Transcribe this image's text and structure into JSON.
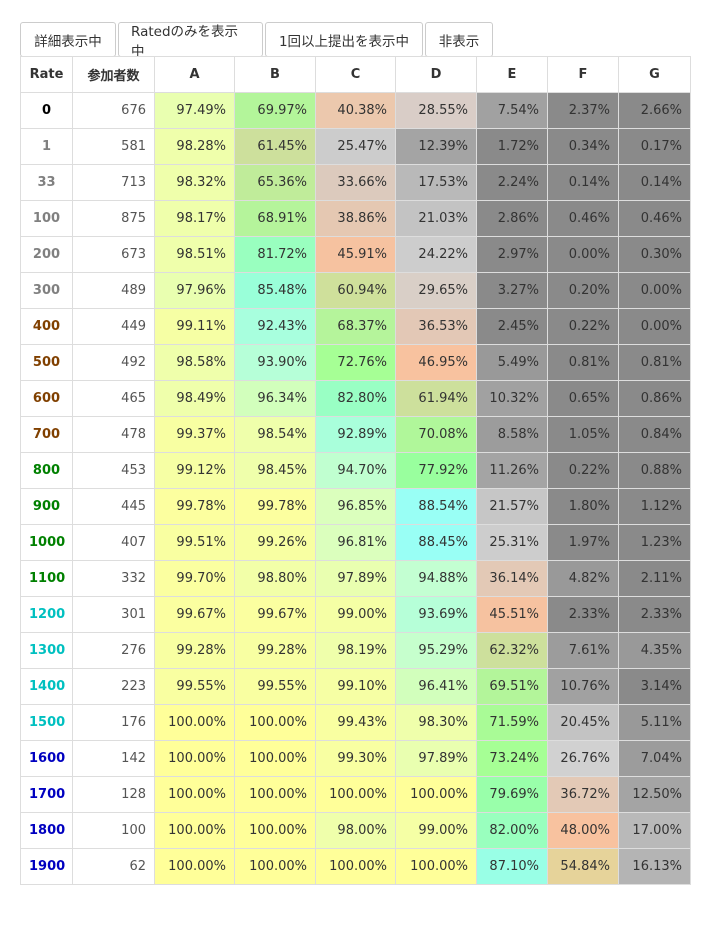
{
  "toolbar": {
    "buttons": [
      "詳細表示中",
      "Ratedのみを表示中",
      "1回以上提出を表示中",
      "非表示"
    ]
  },
  "table": {
    "headers": [
      "Rate",
      "参加者数",
      "A",
      "B",
      "C",
      "D",
      "E",
      "F",
      "G"
    ],
    "rows": [
      {
        "rate": "0",
        "rate_color": "#000000",
        "count": "676",
        "values": [
          "97.49%",
          "69.97%",
          "40.38%",
          "28.55%",
          "7.54%",
          "2.37%",
          "2.66%"
        ],
        "bg": [
          "#e9ffb0",
          "#b3f59a",
          "#ecc8ad",
          "#d9cdc7",
          "#a1a1a1",
          "#8a8a8a",
          "#8a8a8a"
        ]
      },
      {
        "rate": "1",
        "rate_color": "#808080",
        "count": "581",
        "values": [
          "98.28%",
          "61.45%",
          "25.47%",
          "12.39%",
          "1.72%",
          "0.34%",
          "0.17%"
        ],
        "bg": [
          "#efffab",
          "#cde09c",
          "#cccccc",
          "#a4a4a4",
          "#8a8a8a",
          "#8a8a8a",
          "#8a8a8a"
        ]
      },
      {
        "rate": "33",
        "rate_color": "#808080",
        "count": "713",
        "values": [
          "98.32%",
          "65.36%",
          "33.66%",
          "17.53%",
          "2.24%",
          "0.14%",
          "0.14%"
        ],
        "bg": [
          "#efffab",
          "#c0ec9a",
          "#dccabd",
          "#b9b9b9",
          "#8a8a8a",
          "#8a8a8a",
          "#8a8a8a"
        ]
      },
      {
        "rate": "100",
        "rate_color": "#808080",
        "count": "875",
        "values": [
          "98.17%",
          "68.91%",
          "38.86%",
          "21.03%",
          "2.86%",
          "0.46%",
          "0.46%"
        ],
        "bg": [
          "#efffab",
          "#b5f49b",
          "#e5c8b2",
          "#c3c3c3",
          "#8a8a8a",
          "#8a8a8a",
          "#8a8a8a"
        ]
      },
      {
        "rate": "200",
        "rate_color": "#808080",
        "count": "673",
        "values": [
          "98.51%",
          "81.72%",
          "45.91%",
          "24.22%",
          "2.97%",
          "0.00%",
          "0.30%"
        ],
        "bg": [
          "#efffab",
          "#99ffbf",
          "#f6c2a0",
          "#cdcdcd",
          "#8a8a8a",
          "#8a8a8a",
          "#8a8a8a"
        ]
      },
      {
        "rate": "300",
        "rate_color": "#808080",
        "count": "489",
        "values": [
          "97.96%",
          "85.48%",
          "60.94%",
          "29.65%",
          "3.27%",
          "0.20%",
          "0.00%"
        ],
        "bg": [
          "#e9ffb0",
          "#99ffd9",
          "#cfe09b",
          "#d9cfc7",
          "#8a8a8a",
          "#8a8a8a",
          "#8a8a8a"
        ]
      },
      {
        "rate": "400",
        "rate_color": "#804000",
        "count": "449",
        "values": [
          "99.11%",
          "92.43%",
          "68.37%",
          "36.53%",
          "2.45%",
          "0.22%",
          "0.00%"
        ],
        "bg": [
          "#f6ffa4",
          "#a8ffde",
          "#b5f49b",
          "#e3c8b6",
          "#8a8a8a",
          "#8a8a8a",
          "#8a8a8a"
        ]
      },
      {
        "rate": "500",
        "rate_color": "#804000",
        "count": "492",
        "values": [
          "98.58%",
          "93.90%",
          "72.76%",
          "46.95%",
          "5.49%",
          "0.81%",
          "0.81%"
        ],
        "bg": [
          "#efffab",
          "#b6ffd8",
          "#a6ff95",
          "#f8c29f",
          "#999999",
          "#8a8a8a",
          "#8a8a8a"
        ]
      },
      {
        "rate": "600",
        "rate_color": "#804000",
        "count": "465",
        "values": [
          "98.49%",
          "96.34%",
          "82.80%",
          "61.94%",
          "10.32%",
          "0.65%",
          "0.86%"
        ],
        "bg": [
          "#efffab",
          "#d2ffbc",
          "#99ffc4",
          "#cde09c",
          "#a1a1a1",
          "#8a8a8a",
          "#8a8a8a"
        ]
      },
      {
        "rate": "700",
        "rate_color": "#804000",
        "count": "478",
        "values": [
          "99.37%",
          "98.54%",
          "92.89%",
          "70.08%",
          "8.58%",
          "1.05%",
          "0.84%"
        ],
        "bg": [
          "#f8ffa2",
          "#efffab",
          "#a9ffdb",
          "#b0f79a",
          "#9c9c9c",
          "#8a8a8a",
          "#8a8a8a"
        ]
      },
      {
        "rate": "800",
        "rate_color": "#008000",
        "count": "453",
        "values": [
          "99.12%",
          "98.45%",
          "94.70%",
          "77.92%",
          "11.26%",
          "0.22%",
          "0.88%"
        ],
        "bg": [
          "#f6ffa4",
          "#efffab",
          "#c0ffd0",
          "#99ff9e",
          "#a4a4a4",
          "#8a8a8a",
          "#8a8a8a"
        ]
      },
      {
        "rate": "900",
        "rate_color": "#008000",
        "count": "445",
        "values": [
          "99.78%",
          "99.78%",
          "96.85%",
          "88.54%",
          "21.57%",
          "1.80%",
          "1.12%"
        ],
        "bg": [
          "#fcff9f",
          "#fcff9f",
          "#dbffbd",
          "#99fff5",
          "#c6c6c6",
          "#8a8a8a",
          "#8a8a8a"
        ]
      },
      {
        "rate": "1000",
        "rate_color": "#008000",
        "count": "407",
        "values": [
          "99.51%",
          "99.26%",
          "96.81%",
          "88.45%",
          "25.31%",
          "1.97%",
          "1.23%"
        ],
        "bg": [
          "#f9ffa1",
          "#f8ffa2",
          "#dbffbd",
          "#99fff5",
          "#cdcdcd",
          "#8a8a8a",
          "#8a8a8a"
        ]
      },
      {
        "rate": "1100",
        "rate_color": "#008000",
        "count": "332",
        "values": [
          "99.70%",
          "98.80%",
          "97.89%",
          "94.88%",
          "36.14%",
          "4.82%",
          "2.11%"
        ],
        "bg": [
          "#fbffa0",
          "#f2ffa8",
          "#e9ffb0",
          "#c3ffd2",
          "#e3c9b6",
          "#999999",
          "#8a8a8a"
        ]
      },
      {
        "rate": "1200",
        "rate_color": "#00c0c0",
        "count": "301",
        "values": [
          "99.67%",
          "99.67%",
          "99.00%",
          "93.69%",
          "45.51%",
          "2.33%",
          "2.33%"
        ],
        "bg": [
          "#fbffa0",
          "#fbffa0",
          "#f5ffa5",
          "#b6ffd8",
          "#f6c2a0",
          "#8a8a8a",
          "#8a8a8a"
        ]
      },
      {
        "rate": "1300",
        "rate_color": "#00c0c0",
        "count": "276",
        "values": [
          "99.28%",
          "99.28%",
          "98.19%",
          "95.29%",
          "62.32%",
          "7.61%",
          "4.35%"
        ],
        "bg": [
          "#f8ffa2",
          "#f8ffa2",
          "#efffab",
          "#c6ffcd",
          "#cde09c",
          "#9c9c9c",
          "#999999"
        ]
      },
      {
        "rate": "1400",
        "rate_color": "#00c0c0",
        "count": "223",
        "values": [
          "99.55%",
          "99.55%",
          "99.10%",
          "96.41%",
          "69.51%",
          "10.76%",
          "3.14%"
        ],
        "bg": [
          "#f9ffa1",
          "#f9ffa1",
          "#f6ffa4",
          "#d2ffbc",
          "#b3f59a",
          "#a1a1a1",
          "#8a8a8a"
        ]
      },
      {
        "rate": "1500",
        "rate_color": "#00c0c0",
        "count": "176",
        "values": [
          "100.00%",
          "100.00%",
          "99.43%",
          "98.30%",
          "71.59%",
          "20.45%",
          "5.11%"
        ],
        "bg": [
          "#ffff99",
          "#ffff99",
          "#f9ffa1",
          "#efffab",
          "#a9fb96",
          "#c3c3c3",
          "#999999"
        ]
      },
      {
        "rate": "1600",
        "rate_color": "#0000c0",
        "count": "142",
        "values": [
          "100.00%",
          "100.00%",
          "99.30%",
          "97.89%",
          "73.24%",
          "26.76%",
          "7.04%"
        ],
        "bg": [
          "#ffff99",
          "#ffff99",
          "#f8ffa2",
          "#e9ffb0",
          "#a6ff95",
          "#d1d1d1",
          "#9c9c9c"
        ]
      },
      {
        "rate": "1700",
        "rate_color": "#0000c0",
        "count": "128",
        "values": [
          "100.00%",
          "100.00%",
          "100.00%",
          "100.00%",
          "79.69%",
          "36.72%",
          "12.50%"
        ],
        "bg": [
          "#ffff99",
          "#ffff99",
          "#ffff99",
          "#ffff99",
          "#99ffaa",
          "#e3c9b6",
          "#a4a4a4"
        ]
      },
      {
        "rate": "1800",
        "rate_color": "#0000c0",
        "count": "100",
        "values": [
          "100.00%",
          "100.00%",
          "98.00%",
          "99.00%",
          "82.00%",
          "48.00%",
          "17.00%"
        ],
        "bg": [
          "#ffff99",
          "#ffff99",
          "#efffab",
          "#f5ffa5",
          "#99ffbe",
          "#f8c29f",
          "#b9b9b9"
        ]
      },
      {
        "rate": "1900",
        "rate_color": "#0000c0",
        "count": "62",
        "values": [
          "100.00%",
          "100.00%",
          "100.00%",
          "100.00%",
          "87.10%",
          "54.84%",
          "16.13%"
        ],
        "bg": [
          "#ffff99",
          "#ffff99",
          "#ffff99",
          "#ffff99",
          "#99ffe6",
          "#e6d39a",
          "#b4b4b4"
        ]
      }
    ]
  }
}
